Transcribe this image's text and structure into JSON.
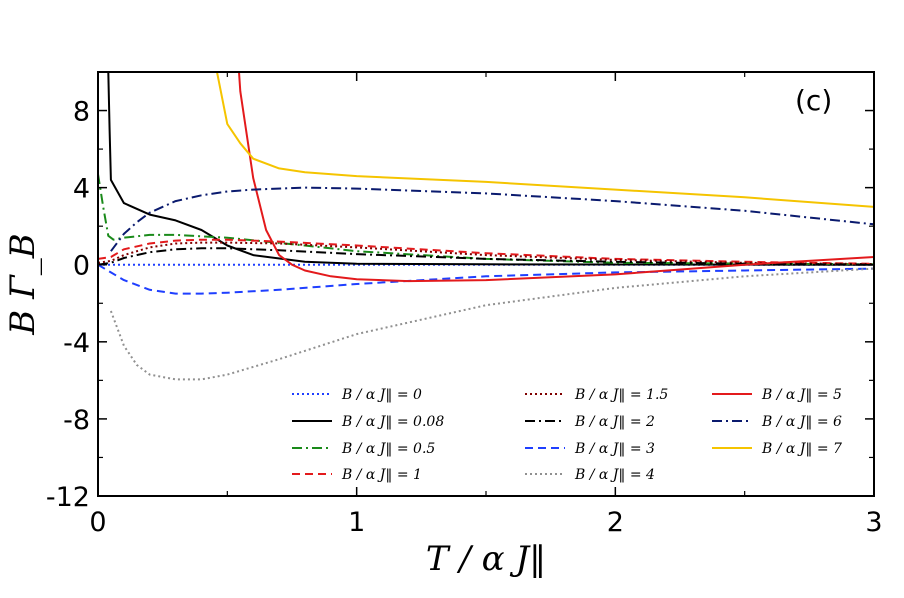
{
  "chart_data": {
    "type": "line",
    "title": "",
    "panel_label": "(c)",
    "xlabel": "T / α J‖",
    "ylabel": "B Γ_B",
    "xlim": [
      0,
      3
    ],
    "ylim": [
      -12,
      10
    ],
    "xticks": [
      0,
      1,
      2,
      3
    ],
    "xtick_labels": [
      "0",
      "1",
      "2",
      "3"
    ],
    "yticks": [
      -12,
      -8,
      -4,
      0,
      4,
      8
    ],
    "ytick_labels": [
      "-12",
      "-8",
      "-4",
      "0",
      "4",
      "8"
    ],
    "legend_position": "lower-right",
    "series": [
      {
        "name": "B / α J‖ = 0",
        "color": "#1f3fff",
        "dash": "dotted",
        "x": [
          0,
          3
        ],
        "y": [
          0,
          0
        ]
      },
      {
        "name": "B / α J‖ = 0.08",
        "color": "#000000",
        "dash": "solid",
        "x": [
          0.04,
          0.045,
          0.05,
          0.1,
          0.2,
          0.3,
          0.4,
          0.5,
          0.6,
          0.8,
          1.0,
          1.5,
          2.0,
          3.0
        ],
        "y": [
          10,
          7,
          4.4,
          3.2,
          2.6,
          2.3,
          1.8,
          1.0,
          0.5,
          0.15,
          0.05,
          0.02,
          0.01,
          0.0
        ]
      },
      {
        "name": "B / α J‖ = 0.5",
        "color": "#1a8a1a",
        "dash": "dashdot",
        "x": [
          0,
          0.02,
          0.04,
          0.06,
          0.1,
          0.2,
          0.3,
          0.5,
          0.8,
          1.0,
          1.5,
          2.0,
          3.0
        ],
        "y": [
          4.7,
          3.0,
          1.5,
          1.3,
          1.4,
          1.55,
          1.55,
          1.4,
          1.0,
          0.7,
          0.3,
          0.1,
          0.02
        ]
      },
      {
        "name": "B / α J‖ = 1",
        "color": "#e31a1c",
        "dash": "dashed",
        "x": [
          0,
          0.05,
          0.1,
          0.2,
          0.3,
          0.4,
          0.5,
          0.7,
          1.0,
          1.5,
          2.0,
          2.5,
          3.0
        ],
        "y": [
          0.3,
          0.4,
          0.8,
          1.1,
          1.25,
          1.3,
          1.3,
          1.2,
          1.0,
          0.6,
          0.3,
          0.15,
          0.05
        ]
      },
      {
        "name": "B / α J‖ = 1.5",
        "color": "#800000",
        "dash": "dotted",
        "x": [
          0,
          0.05,
          0.1,
          0.2,
          0.3,
          0.4,
          0.5,
          0.7,
          1.0,
          1.5,
          2.0,
          2.5,
          3.0
        ],
        "y": [
          0.1,
          0.2,
          0.5,
          0.9,
          1.1,
          1.15,
          1.15,
          1.1,
          0.9,
          0.5,
          0.25,
          0.1,
          0.03
        ]
      },
      {
        "name": "B / α J‖ = 2",
        "color": "#000000",
        "dash": "dashdot",
        "x": [
          0,
          0.05,
          0.1,
          0.2,
          0.3,
          0.4,
          0.5,
          0.7,
          1.0,
          1.5,
          2.0,
          2.5,
          3.0
        ],
        "y": [
          0,
          0.1,
          0.35,
          0.65,
          0.8,
          0.85,
          0.85,
          0.75,
          0.55,
          0.3,
          0.15,
          0.05,
          0.0
        ]
      },
      {
        "name": "B / α J‖ = 3",
        "color": "#1f3fff",
        "dash": "dashed",
        "x": [
          0,
          0.05,
          0.1,
          0.2,
          0.3,
          0.4,
          0.5,
          0.7,
          1.0,
          1.5,
          2.0,
          2.5,
          3.0
        ],
        "y": [
          0,
          -0.4,
          -0.8,
          -1.3,
          -1.5,
          -1.5,
          -1.45,
          -1.3,
          -1.0,
          -0.6,
          -0.4,
          -0.3,
          -0.2
        ]
      },
      {
        "name": "B / α J‖ = 4",
        "color": "#909090",
        "dash": "dotted",
        "x": [
          0.05,
          0.1,
          0.15,
          0.2,
          0.3,
          0.4,
          0.5,
          0.7,
          1.0,
          1.5,
          2.0,
          2.5,
          3.0
        ],
        "y": [
          -2.4,
          -4.2,
          -5.2,
          -5.7,
          -5.95,
          -5.95,
          -5.7,
          -4.9,
          -3.6,
          -2.1,
          -1.2,
          -0.6,
          -0.2
        ]
      },
      {
        "name": "B / α J‖ = 5",
        "color": "#e31a1c",
        "dash": "solid",
        "x": [
          0.545,
          0.55,
          0.6,
          0.65,
          0.7,
          0.75,
          0.8,
          0.9,
          1.0,
          1.2,
          1.5,
          2.0,
          2.5,
          3.0
        ],
        "y": [
          10,
          9.0,
          4.5,
          1.8,
          0.5,
          0.0,
          -0.3,
          -0.6,
          -0.75,
          -0.85,
          -0.8,
          -0.5,
          0.0,
          0.4
        ]
      },
      {
        "name": "B / α J‖ = 6",
        "color": "#0a1a6e",
        "dash": "dashdot",
        "x": [
          0.05,
          0.1,
          0.15,
          0.2,
          0.3,
          0.4,
          0.5,
          0.6,
          0.8,
          1.0,
          1.5,
          2.0,
          2.5,
          3.0
        ],
        "y": [
          0.7,
          1.6,
          2.2,
          2.7,
          3.3,
          3.6,
          3.8,
          3.9,
          4.0,
          3.95,
          3.7,
          3.3,
          2.8,
          2.1
        ]
      },
      {
        "name": "B / α J‖ = 7",
        "color": "#f5c400",
        "dash": "solid",
        "x": [
          0.46,
          0.5,
          0.55,
          0.6,
          0.7,
          0.8,
          1.0,
          1.5,
          2.0,
          2.5,
          3.0
        ],
        "y": [
          10,
          7.3,
          6.3,
          5.5,
          5.0,
          4.8,
          4.6,
          4.3,
          3.9,
          3.5,
          3.0
        ]
      }
    ]
  }
}
